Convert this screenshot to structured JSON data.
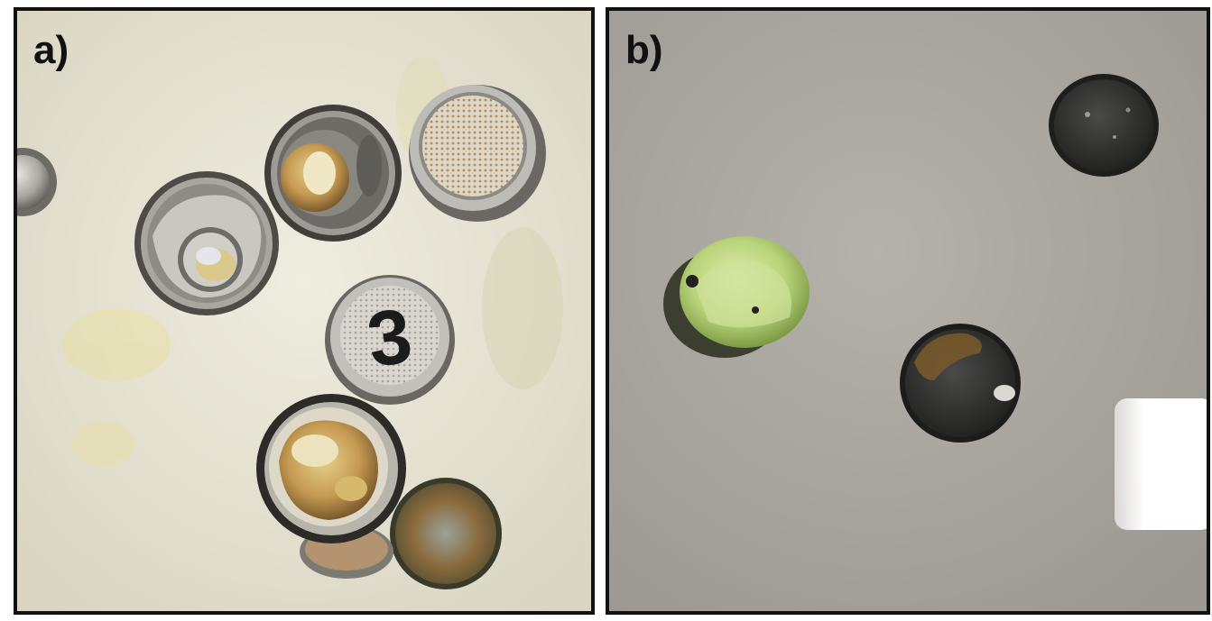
{
  "panels": [
    {
      "id": "a",
      "label": "a)",
      "background": "#e9e6d6",
      "items": [
        "opened-coin-cell-case",
        "corroded-cell-case",
        "stainless-spacer-disk",
        "cell-cap-marked",
        "corroded-cell-lid",
        "rusted-spacer-disk"
      ],
      "marking": "3"
    },
    {
      "id": "b",
      "label": "b)",
      "background": "#a7a39d",
      "items": [
        "green-electrode-disk",
        "dark-electrode-disk",
        "rusted-electrode-disk"
      ]
    }
  ],
  "colors": {
    "border": "#111111",
    "steel": "#8a8a88",
    "rust": "#9a6a3a",
    "green_residue": "#b9d47a",
    "dark_electrode": "#2a2a2a"
  }
}
